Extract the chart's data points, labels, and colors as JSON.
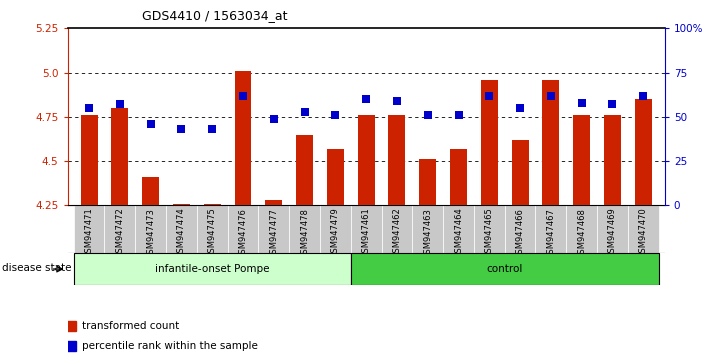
{
  "title": "GDS4410 / 1563034_at",
  "samples": [
    "GSM947471",
    "GSM947472",
    "GSM947473",
    "GSM947474",
    "GSM947475",
    "GSM947476",
    "GSM947477",
    "GSM947478",
    "GSM947479",
    "GSM947461",
    "GSM947462",
    "GSM947463",
    "GSM947464",
    "GSM947465",
    "GSM947466",
    "GSM947467",
    "GSM947468",
    "GSM947469",
    "GSM947470"
  ],
  "transformed_count": [
    4.76,
    4.8,
    4.41,
    4.26,
    4.26,
    5.01,
    4.28,
    4.65,
    4.57,
    4.76,
    4.76,
    4.51,
    4.57,
    4.96,
    4.62,
    4.96,
    4.76,
    4.76,
    4.85
  ],
  "percentile_rank": [
    55,
    57,
    46,
    43,
    43,
    62,
    49,
    53,
    51,
    60,
    59,
    51,
    51,
    62,
    55,
    62,
    58,
    57,
    62
  ],
  "group1_label": "infantile-onset Pompe",
  "group1_count": 9,
  "group2_label": "control",
  "group2_count": 10,
  "disease_state_label": "disease state",
  "legend_label1": "transformed count",
  "legend_label2": "percentile rank within the sample",
  "ylim_left": [
    4.25,
    5.25
  ],
  "ylim_right": [
    0,
    100
  ],
  "left_yticks": [
    4.25,
    4.5,
    4.75,
    5.0,
    5.25
  ],
  "right_yticks": [
    0,
    25,
    50,
    75,
    100
  ],
  "right_yticklabels": [
    "0",
    "25",
    "50",
    "75",
    "100%"
  ],
  "bar_color": "#cc2200",
  "dot_color": "#0000cc",
  "group1_bg": "#ccffcc",
  "group2_bg": "#44cc44",
  "sample_cell_bg": "#c8c8c8",
  "hline_positions": [
    4.5,
    4.75,
    5.0
  ],
  "bar_width": 0.55,
  "dot_size": 30
}
